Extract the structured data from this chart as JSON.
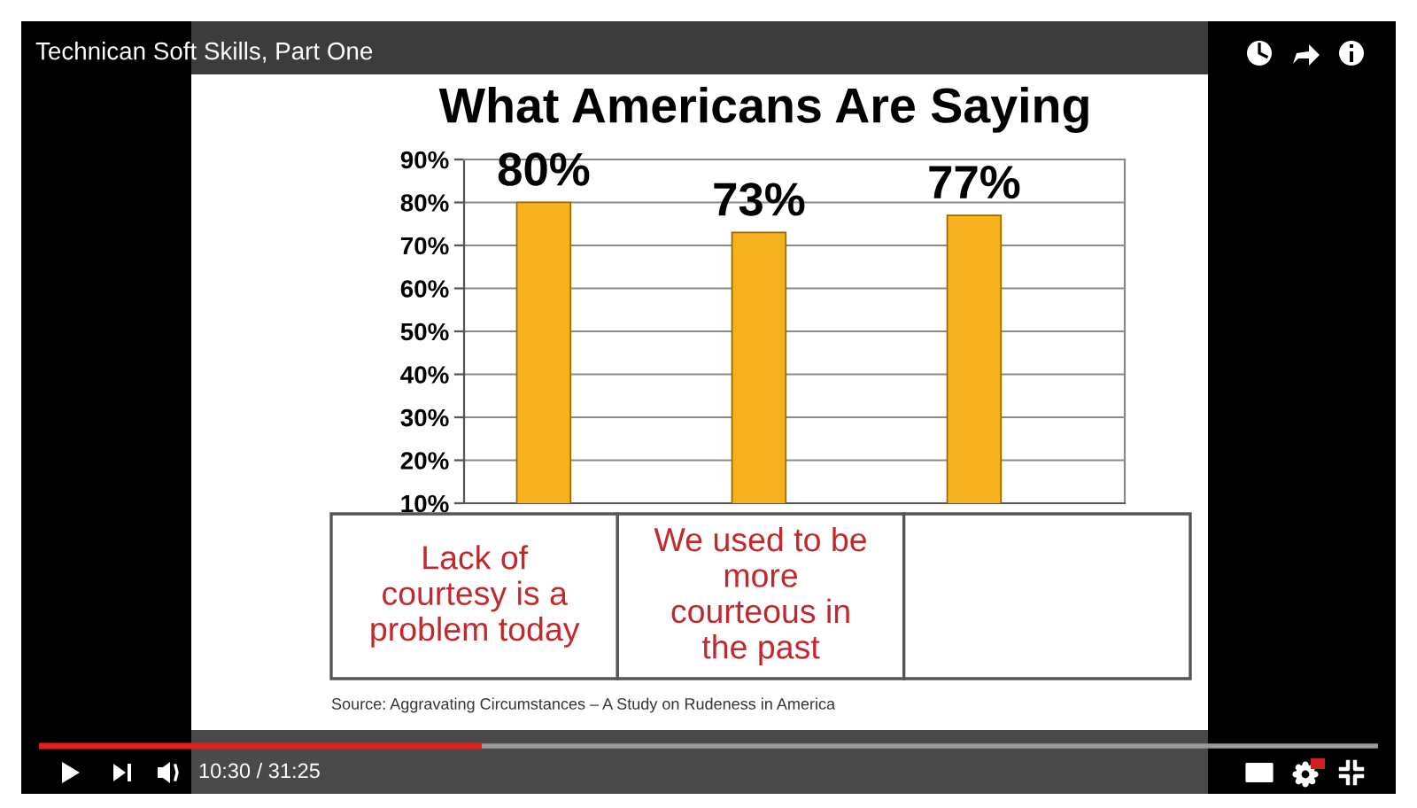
{
  "chart_data": {
    "type": "bar",
    "title": "What Americans Are Saying",
    "categories": [
      "Lack of\ncourtesy is a\nproblem today",
      "We used to be\nmore\ncourteous in\nthe past",
      null
    ],
    "values": [
      80,
      73,
      77
    ],
    "value_labels": [
      "80%",
      "73%",
      "77%"
    ],
    "color": "#f5b21c",
    "ylim": [
      10,
      90
    ],
    "yticks": [
      {
        "value": 10,
        "label": "10%"
      },
      {
        "value": 20,
        "label": "20%"
      },
      {
        "value": 30,
        "label": "30%"
      },
      {
        "value": 40,
        "label": "40%"
      },
      {
        "value": 50,
        "label": "50%"
      },
      {
        "value": 60,
        "label": "60%"
      },
      {
        "value": 70,
        "label": "70%"
      },
      {
        "value": 80,
        "label": "80%"
      },
      {
        "value": 90,
        "label": "90%"
      }
    ],
    "grid": "y",
    "annotations": [
      "Source: Aggravating Circumstances – A Study on Rudeness in America",
      "Technican Soft Skills, Part One",
      "10:30 / 31:25"
    ]
  }
}
